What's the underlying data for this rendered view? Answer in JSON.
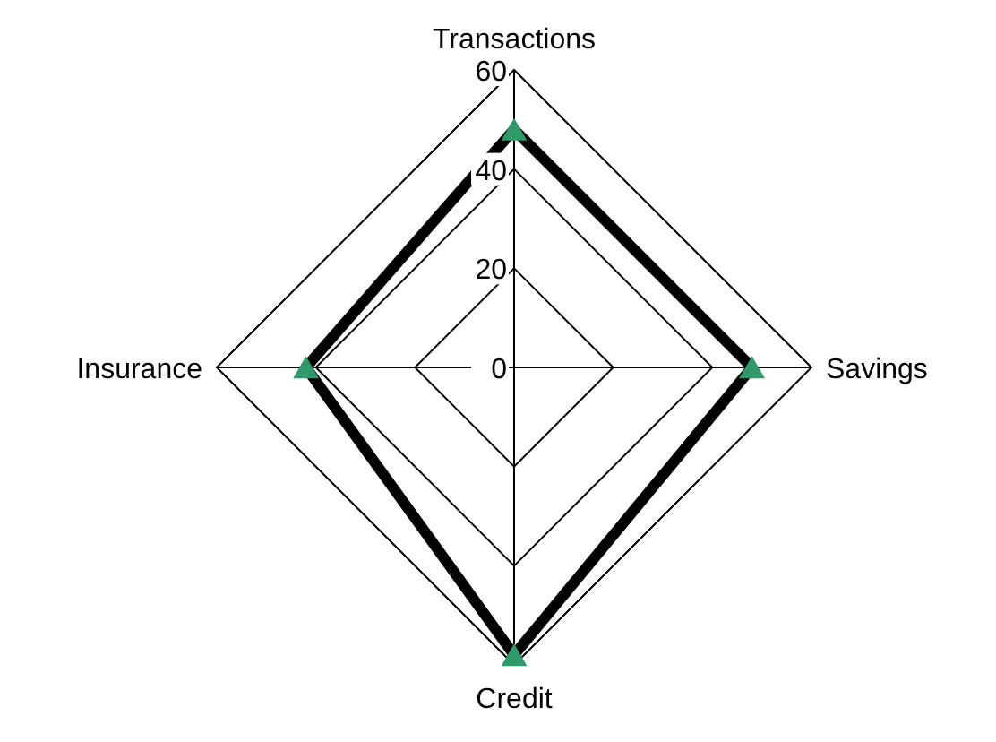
{
  "chart_data": {
    "type": "radar",
    "categories": [
      "Transactions",
      "Savings",
      "Credit",
      "Insurance"
    ],
    "series": [
      {
        "color": "#000000",
        "colors": [
          "#2e9a6a",
          "#2e9a6a",
          "#2e9a6a",
          "#2e9a6a"
        ],
        "values": [
          48,
          48,
          58,
          42
        ]
      }
    ],
    "ylim": [
      0,
      60
    ],
    "yticks": [
      0,
      20,
      40,
      60
    ],
    "marker": "triangle",
    "grid": true
  }
}
